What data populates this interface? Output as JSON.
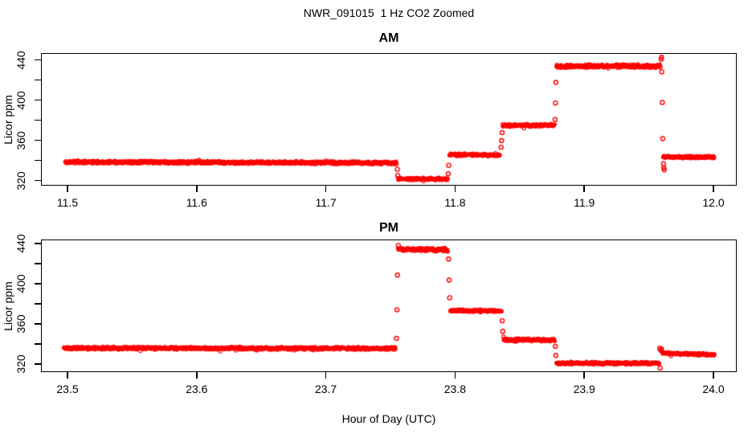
{
  "figure": {
    "title": "NWR_091015  1 Hz CO2 Zoomed",
    "xlabel": "Hour of Day (UTC)",
    "ylabel": "Licor ppm",
    "point_color": "#ff0000",
    "axis_color": "#000000",
    "background_color": "#ffffff",
    "sample_rate_hz": 1,
    "marker": "open-circle"
  },
  "chart_data": [
    {
      "type": "scatter",
      "title": "AM",
      "ylabel": "Licor ppm",
      "xlim": [
        11.48,
        12.02
      ],
      "ylim": [
        315,
        447
      ],
      "x_ticks": [
        11.5,
        11.6,
        11.7,
        11.8,
        11.9,
        12.0
      ],
      "x_tick_labels": [
        "11.5",
        "11.6",
        "11.7",
        "11.8",
        "11.9",
        "12.0"
      ],
      "y_ticks": [
        320,
        340,
        360,
        380,
        400,
        420,
        440
      ],
      "y_tick_labels": [
        "320",
        "",
        "360",
        "",
        "400",
        "",
        "440"
      ],
      "grid": false,
      "legend": null,
      "segments": [
        {
          "t0": 11.498,
          "t1": 11.7544,
          "v0": 338.8,
          "v1": 337.8,
          "noise": 1.6
        },
        {
          "t0": 11.7556,
          "t1": 11.7941,
          "v0": 321.8,
          "v1": 321.8,
          "noise": 1.4
        },
        {
          "t0": 11.7954,
          "t1": 11.8345,
          "v0": 346.0,
          "v1": 345.5,
          "noise": 1.5
        },
        {
          "t0": 11.8365,
          "t1": 11.8769,
          "v0": 375.3,
          "v1": 375.3,
          "noise": 1.5
        },
        {
          "t0": 11.8782,
          "t1": 11.959,
          "v0": 434.0,
          "v1": 434.3,
          "noise": 2.0
        },
        {
          "t0": 11.9608,
          "t1": 12.0003,
          "v0": 343.8,
          "v1": 343.5,
          "noise": 1.5
        }
      ],
      "transition_points": [
        [
          11.755,
          331.5
        ],
        [
          11.7553,
          325.5
        ],
        [
          11.7944,
          327.0
        ],
        [
          11.7948,
          335.5
        ],
        [
          11.8353,
          353.5
        ],
        [
          11.8357,
          360.0
        ],
        [
          11.8361,
          368.0
        ],
        [
          11.8771,
          381.0
        ],
        [
          11.8774,
          397.5
        ],
        [
          11.8777,
          418.0
        ],
        [
          11.9592,
          441.0
        ],
        [
          11.9595,
          443.0
        ],
        [
          11.9597,
          428.5
        ],
        [
          11.9601,
          398.0
        ],
        [
          11.9605,
          362.0
        ],
        [
          11.961,
          337.0
        ],
        [
          11.9613,
          333.0
        ],
        [
          11.9616,
          331.0
        ]
      ]
    },
    {
      "type": "scatter",
      "title": "PM",
      "ylabel": "Licor ppm",
      "xlim": [
        23.48,
        24.02
      ],
      "ylim": [
        315,
        447
      ],
      "x_ticks": [
        23.5,
        23.6,
        23.7,
        23.8,
        23.9,
        24.0
      ],
      "x_tick_labels": [
        "23.5",
        "23.6",
        "23.7",
        "23.8",
        "23.9",
        "24.0"
      ],
      "y_ticks": [
        320,
        340,
        360,
        380,
        400,
        420,
        440
      ],
      "y_tick_labels": [
        "320",
        "",
        "360",
        "",
        "400",
        "",
        "440"
      ],
      "grid": false,
      "legend": null,
      "segments": [
        {
          "t0": 23.4969,
          "t1": 23.7537,
          "v0": 336.2,
          "v1": 336.0,
          "noise": 1.6
        },
        {
          "t0": 23.7556,
          "t1": 23.7941,
          "v0": 434.8,
          "v1": 434.2,
          "noise": 2.0
        },
        {
          "t0": 23.796,
          "t1": 23.8358,
          "v0": 373.8,
          "v1": 373.3,
          "noise": 1.5
        },
        {
          "t0": 23.8371,
          "t1": 23.8769,
          "v0": 344.6,
          "v1": 344.4,
          "noise": 1.5
        },
        {
          "t0": 23.8782,
          "t1": 23.9577,
          "v0": 321.2,
          "v1": 321.2,
          "noise": 1.5
        },
        {
          "t0": 23.9602,
          "t1": 24.0006,
          "v0": 331.2,
          "v1": 329.8,
          "noise": 1.4
        }
      ],
      "transition_points": [
        [
          23.7543,
          346.0
        ],
        [
          23.7547,
          374.5
        ],
        [
          23.7551,
          409.0
        ],
        [
          23.7558,
          438.5
        ],
        [
          23.7947,
          425.0
        ],
        [
          23.7951,
          404.0
        ],
        [
          23.7955,
          386.5
        ],
        [
          23.8362,
          363.5
        ],
        [
          23.8366,
          353.0
        ],
        [
          23.8773,
          338.0
        ],
        [
          23.8777,
          329.0
        ],
        [
          23.9581,
          336.0
        ],
        [
          23.9585,
          316.5
        ],
        [
          23.959,
          334.0
        ],
        [
          23.9595,
          335.5
        ]
      ]
    }
  ]
}
